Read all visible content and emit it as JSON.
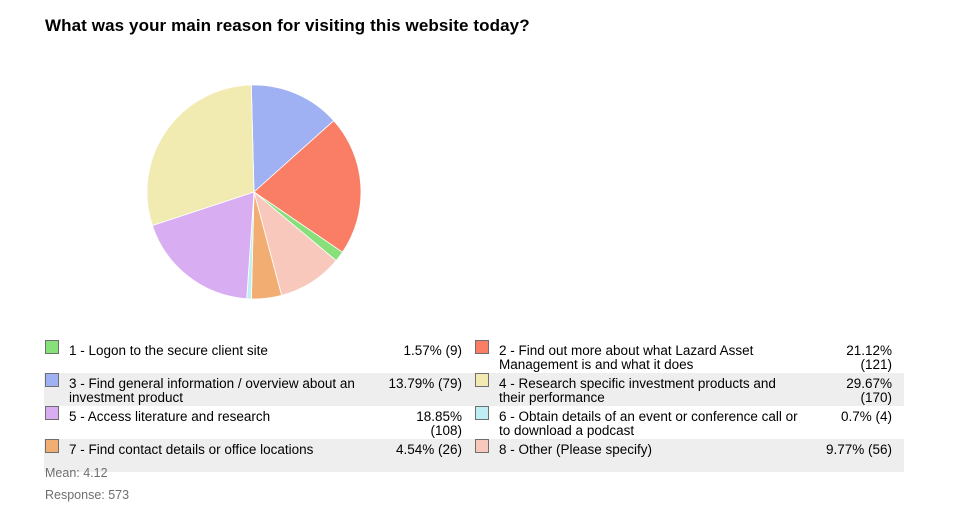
{
  "title": "What was your main reason for visiting this website today?",
  "chart_data": {
    "type": "pie",
    "title": "What was your main reason for visiting this website today?",
    "slices": [
      {
        "label": "1 - Logon to the secure client site",
        "percent": 1.57,
        "count": 9,
        "value_text": "1.57% (9)",
        "color": "#88e07a"
      },
      {
        "label": "2 - Find out more about what Lazard Asset Management is and what it does",
        "percent": 21.12,
        "count": 121,
        "value_text": "21.12% (121)",
        "color": "#f97e65"
      },
      {
        "label": "3 - Find general information / overview about an investment product",
        "percent": 13.79,
        "count": 79,
        "value_text": "13.79% (79)",
        "color": "#9fb1f2"
      },
      {
        "label": "4 - Research specific investment products and their performance",
        "percent": 29.67,
        "count": 170,
        "value_text": "29.67% (170)",
        "color": "#f1ebb2"
      },
      {
        "label": "5 - Access literature and research",
        "percent": 18.85,
        "count": 108,
        "value_text": "18.85% (108)",
        "color": "#d8adf2"
      },
      {
        "label": "6 - Obtain details of an event or conference call or to download a podcast",
        "percent": 0.7,
        "count": 4,
        "value_text": "0.7% (4)",
        "color": "#bfeff3"
      },
      {
        "label": "7 - Find contact details or office locations",
        "percent": 4.54,
        "count": 26,
        "value_text": "4.54% (26)",
        "color": "#f2ad73"
      },
      {
        "label": "8 - Other (Please specify)",
        "percent": 9.77,
        "count": 56,
        "value_text": "9.77% (56)",
        "color": "#f8c8bd"
      }
    ],
    "legend_placement": "bottom"
  },
  "footer": {
    "mean": "Mean: 4.12",
    "response": "Response: 573"
  }
}
